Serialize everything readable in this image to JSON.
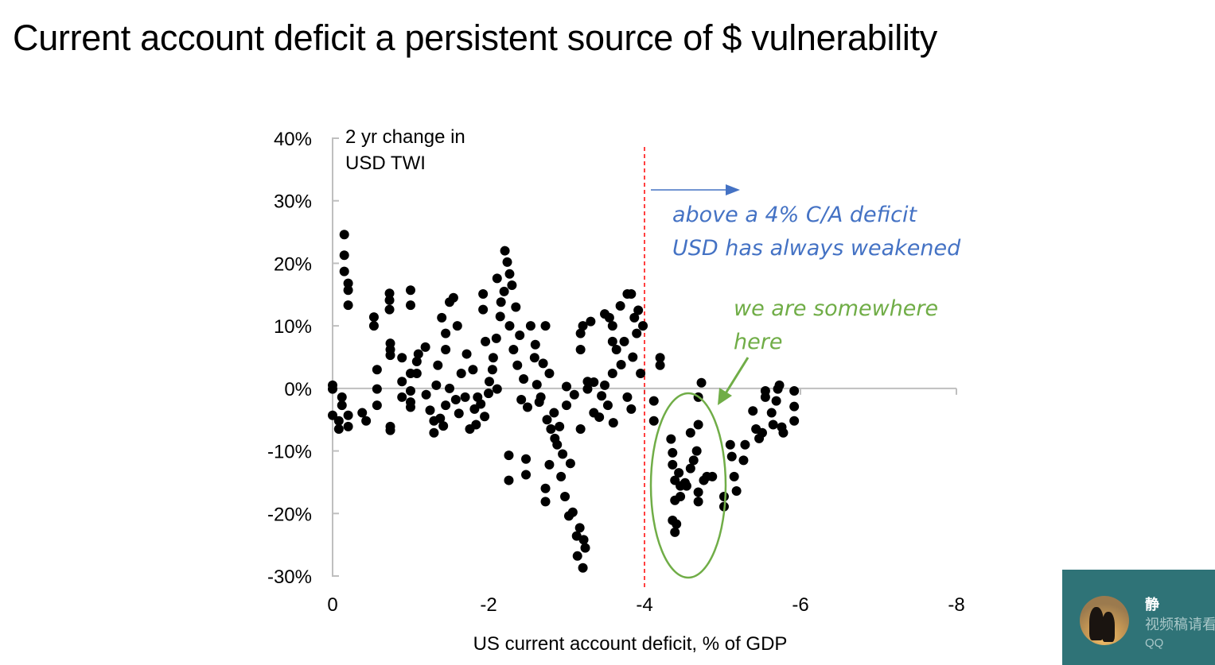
{
  "title": "Current account deficit a persistent source of $ vulnerability",
  "chart_data": {
    "type": "scatter",
    "title": "",
    "xlabel": "US current account deficit, % of GDP",
    "ylabel": "2 yr change in USD TWI",
    "ylabel_lines": [
      "2 yr change in",
      "USD TWI"
    ],
    "xlim": [
      0,
      -8
    ],
    "ylim": [
      -30,
      40
    ],
    "x_ticks": [
      "0",
      "-2",
      "-4",
      "-6",
      "-8"
    ],
    "x_tick_values": [
      0,
      -2,
      -4,
      -6,
      -8
    ],
    "y_ticks": [
      "40%",
      "30%",
      "20%",
      "10%",
      "0%",
      "-10%",
      "-20%",
      "-30%"
    ],
    "y_tick_values": [
      40,
      30,
      20,
      10,
      0,
      -10,
      -20,
      -30
    ],
    "grid": false,
    "marker_color": "#000000",
    "threshold_line": {
      "x": -4,
      "color": "#ff0000",
      "style": "dashed"
    },
    "annotations": [
      {
        "lines": [
          "above a 4% C/A deficit",
          "USD has always weakened"
        ],
        "color": "#4472c4"
      },
      {
        "lines": [
          "we are somewhere",
          "here"
        ],
        "color": "#70ad47"
      }
    ],
    "points": [
      [
        0,
        0.5
      ],
      [
        0,
        -0.1
      ],
      [
        0,
        -4.3
      ],
      [
        -0.08,
        -5.2
      ],
      [
        -0.08,
        -6.5
      ],
      [
        -0.12,
        -1.4
      ],
      [
        -0.12,
        -2.7
      ],
      [
        -0.15,
        24.6
      ],
      [
        -0.15,
        21.3
      ],
      [
        -0.15,
        18.7
      ],
      [
        -0.2,
        16.8
      ],
      [
        -0.2,
        15.7
      ],
      [
        -0.2,
        13.3
      ],
      [
        -0.2,
        -4.3
      ],
      [
        -0.2,
        -6.1
      ],
      [
        -0.38,
        -3.9
      ],
      [
        -0.43,
        -5.2
      ],
      [
        -0.53,
        11.4
      ],
      [
        -0.53,
        10
      ],
      [
        -0.57,
        3
      ],
      [
        -0.57,
        -0.1
      ],
      [
        -0.57,
        -2.7
      ],
      [
        -0.73,
        15.2
      ],
      [
        -0.73,
        14.1
      ],
      [
        -0.73,
        12.6
      ],
      [
        -0.74,
        7.2
      ],
      [
        -0.74,
        6.2
      ],
      [
        -0.74,
        5.3
      ],
      [
        -0.74,
        -6.1
      ],
      [
        -0.74,
        -6.7
      ],
      [
        -0.89,
        4.9
      ],
      [
        -0.89,
        1.1
      ],
      [
        -0.89,
        -1.4
      ],
      [
        -1,
        15.7
      ],
      [
        -1,
        13.3
      ],
      [
        -1,
        2.4
      ],
      [
        -1,
        -0.4
      ],
      [
        -1,
        -2.2
      ],
      [
        -1,
        -3
      ],
      [
        -1.08,
        4.3
      ],
      [
        -1.08,
        2.4
      ],
      [
        -1.19,
        6.6
      ],
      [
        -1.3,
        -5.2
      ],
      [
        -1.3,
        -7.1
      ],
      [
        -1.33,
        0.5
      ],
      [
        -1.35,
        3.7
      ],
      [
        -1.4,
        11.3
      ],
      [
        -1.45,
        8.8
      ],
      [
        -1.45,
        6.2
      ],
      [
        -1.45,
        -2.7
      ],
      [
        -1.5,
        13.8
      ],
      [
        -1.55,
        14.5
      ],
      [
        -1.6,
        10
      ],
      [
        -1.65,
        2.4
      ],
      [
        -1.7,
        -1.4
      ],
      [
        -1.76,
        -6.5
      ],
      [
        -1.93,
        15.1
      ],
      [
        -1.93,
        12.6
      ],
      [
        -1.96,
        7.5
      ],
      [
        -2.06,
        4.9
      ],
      [
        -2.01,
        1.1
      ],
      [
        -1.86,
        -1.4
      ],
      [
        -1.84,
        -5.8
      ],
      [
        -2.21,
        22
      ],
      [
        -2.24,
        20.2
      ],
      [
        -2.27,
        18.3
      ],
      [
        -2.11,
        17.6
      ],
      [
        -2.16,
        13.8
      ],
      [
        -2.27,
        10
      ],
      [
        -2.32,
        6.2
      ],
      [
        -2.37,
        3.7
      ],
      [
        -2.11,
        -0.1
      ],
      [
        -2.26,
        -10.7
      ],
      [
        -2.26,
        -14.7
      ],
      [
        -2.48,
        -11.3
      ],
      [
        -2.48,
        -13.8
      ],
      [
        -2.54,
        10
      ],
      [
        -2.59,
        4.9
      ],
      [
        -2.67,
        -1.4
      ],
      [
        -2.73,
        10
      ],
      [
        -2.78,
        2.4
      ],
      [
        -2.84,
        -3.9
      ],
      [
        -2.88,
        -9
      ],
      [
        -2.73,
        -16
      ],
      [
        -2.73,
        -18.1
      ],
      [
        -2.78,
        -12.2
      ],
      [
        -2.93,
        -14.1
      ],
      [
        -2.98,
        -17.3
      ],
      [
        -3.03,
        -20.4
      ],
      [
        -3.08,
        -19.8
      ],
      [
        -3.13,
        -23.6
      ],
      [
        -3.17,
        -22.3
      ],
      [
        -3.22,
        -24.2
      ],
      [
        -3.14,
        -26.8
      ],
      [
        -3.21,
        -28.7
      ],
      [
        -3.24,
        -25.5
      ],
      [
        -3,
        0.3
      ],
      [
        -3,
        -2.7
      ],
      [
        -2.91,
        -6.1
      ],
      [
        -3.18,
        -6.5
      ],
      [
        -3.18,
        8.8
      ],
      [
        -3.18,
        6.2
      ],
      [
        -3.21,
        10
      ],
      [
        -3.31,
        10.7
      ],
      [
        -3.27,
        1.1
      ],
      [
        -3.27,
        -0.1
      ],
      [
        -3.35,
        -3.9
      ],
      [
        -3.42,
        -4.6
      ],
      [
        -3.49,
        11.9
      ],
      [
        -3.59,
        10
      ],
      [
        -3.59,
        2.4
      ],
      [
        -3.64,
        6.2
      ],
      [
        -3.69,
        13.2
      ],
      [
        -3.74,
        7.5
      ],
      [
        -3.78,
        15.1
      ],
      [
        -3.83,
        15.1
      ],
      [
        -3.87,
        11.3
      ],
      [
        -3.9,
        8.8
      ],
      [
        -3.95,
        2.4
      ],
      [
        -3.98,
        10
      ],
      [
        -3.78,
        -1.4
      ],
      [
        -3.83,
        -3.3
      ],
      [
        -3.55,
        11.3
      ],
      [
        -3.59,
        7.5
      ],
      [
        -3.53,
        -2.7
      ],
      [
        -3.49,
        0.5
      ],
      [
        -1.2,
        -1
      ],
      [
        -1.25,
        -3.5
      ],
      [
        -1.38,
        -4.8
      ],
      [
        -1.42,
        -6
      ],
      [
        -1.5,
        0
      ],
      [
        -1.58,
        -1.8
      ],
      [
        -1.62,
        -4
      ],
      [
        -1.72,
        5.5
      ],
      [
        -1.8,
        3
      ],
      [
        -1.82,
        -3.3
      ],
      [
        -1.9,
        -2.5
      ],
      [
        -1.95,
        -4.5
      ],
      [
        -2.0,
        -0.8
      ],
      [
        -2.05,
        3
      ],
      [
        -2.1,
        8
      ],
      [
        -2.15,
        11.5
      ],
      [
        -2.2,
        15.5
      ],
      [
        -2.3,
        16.5
      ],
      [
        -2.35,
        13
      ],
      [
        -2.4,
        8.5
      ],
      [
        -2.42,
        -1.8
      ],
      [
        -2.45,
        1.5
      ],
      [
        -2.5,
        -3
      ],
      [
        -2.6,
        7
      ],
      [
        -2.62,
        0.6
      ],
      [
        -2.65,
        -2.2
      ],
      [
        -2.7,
        4
      ],
      [
        -2.75,
        -5
      ],
      [
        -2.8,
        -6.5
      ],
      [
        -2.85,
        -8
      ],
      [
        -2.95,
        -10.5
      ],
      [
        -3.05,
        -12
      ],
      [
        -3.1,
        -1
      ],
      [
        -3.35,
        1
      ],
      [
        -3.45,
        -1.2
      ],
      [
        -3.6,
        -5.5
      ],
      [
        -3.7,
        3.8
      ],
      [
        -3.85,
        5
      ],
      [
        -3.92,
        12.5
      ],
      [
        -1.1,
        5.5
      ],
      [
        -4.12,
        -2
      ],
      [
        -4.12,
        -5.2
      ],
      [
        -4.2,
        4.9
      ],
      [
        -4.2,
        3.7
      ],
      [
        -4.34,
        -8.1
      ],
      [
        -4.36,
        -10.3
      ],
      [
        -4.36,
        -12.2
      ],
      [
        -4.39,
        -14.7
      ],
      [
        -4.44,
        -13.5
      ],
      [
        -4.39,
        -17.9
      ],
      [
        -4.36,
        -21.1
      ],
      [
        -4.39,
        -23
      ],
      [
        -4.41,
        -21.7
      ],
      [
        -4.46,
        -15.6
      ],
      [
        -4.52,
        -15.1
      ],
      [
        -4.54,
        -15.6
      ],
      [
        -4.46,
        -17.3
      ],
      [
        -4.59,
        -7.1
      ],
      [
        -4.59,
        -12.8
      ],
      [
        -4.63,
        -11.5
      ],
      [
        -4.67,
        -10
      ],
      [
        -4.69,
        -5.8
      ],
      [
        -4.69,
        -1.4
      ],
      [
        -4.73,
        0.9
      ],
      [
        -4.69,
        -16.6
      ],
      [
        -4.69,
        -18.1
      ],
      [
        -4.76,
        -14.7
      ],
      [
        -4.8,
        -14.1
      ],
      [
        -4.87,
        -14.1
      ],
      [
        -5.02,
        -17.3
      ],
      [
        -5.02,
        -18.9
      ],
      [
        -5.1,
        -9
      ],
      [
        -5.12,
        -10.9
      ],
      [
        -5.15,
        -14.1
      ],
      [
        -5.18,
        -16.4
      ],
      [
        -5.27,
        -11.5
      ],
      [
        -5.29,
        -9
      ],
      [
        -5.39,
        -3.6
      ],
      [
        -5.43,
        -6.5
      ],
      [
        -5.47,
        -8
      ],
      [
        -5.51,
        -7.1
      ],
      [
        -5.55,
        -0.4
      ],
      [
        -5.55,
        -1.4
      ],
      [
        -5.63,
        -3.9
      ],
      [
        -5.65,
        -5.8
      ],
      [
        -5.69,
        -2
      ],
      [
        -5.71,
        -0.1
      ],
      [
        -5.73,
        0.5
      ],
      [
        -5.76,
        -6.2
      ],
      [
        -5.78,
        -7.1
      ],
      [
        -5.92,
        -0.4
      ],
      [
        -5.92,
        -2.9
      ],
      [
        -5.92,
        -5.2
      ]
    ]
  },
  "notification": {
    "sender": "静",
    "message": "视频稿请看",
    "app": "QQ",
    "background": "#2f7377"
  }
}
